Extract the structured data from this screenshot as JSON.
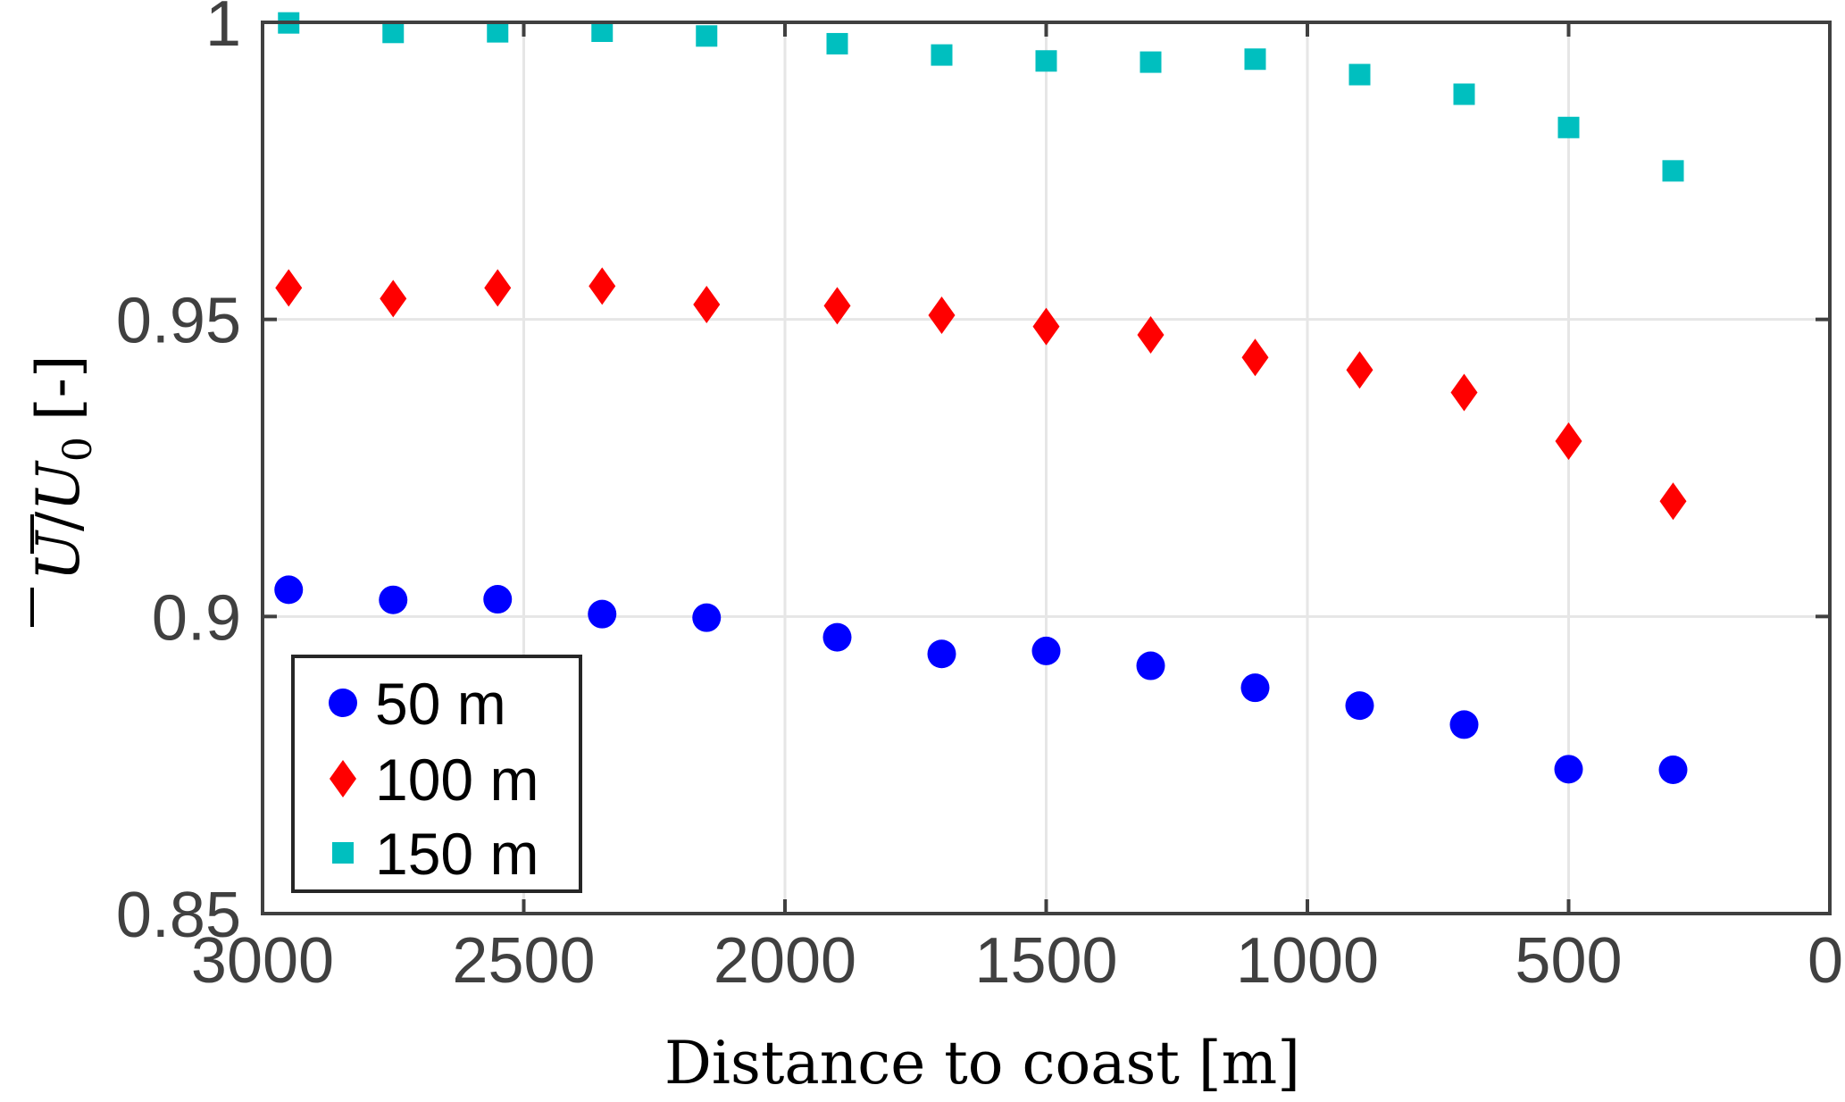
{
  "chart_data": {
    "type": "scatter",
    "title": "",
    "xlabel": "Distance to coast [m]",
    "ylabel": "[-]",
    "ylabel_math": {
      "numerator": "U",
      "slash": "/",
      "denominator": "U",
      "subscript": "0"
    },
    "xlim": [
      3000,
      0
    ],
    "ylim": [
      0.85,
      1.0
    ],
    "x_reversed": true,
    "grid": true,
    "legend_position": "bottom-left",
    "x_ticks": [
      {
        "value": 3000,
        "label": "3000"
      },
      {
        "value": 2500,
        "label": "2500"
      },
      {
        "value": 2000,
        "label": "2000"
      },
      {
        "value": 1500,
        "label": "1500"
      },
      {
        "value": 1000,
        "label": "1000"
      },
      {
        "value": 500,
        "label": "500"
      },
      {
        "value": 0,
        "label": "0"
      }
    ],
    "y_ticks": [
      {
        "value": 0.85,
        "label": "0.85"
      },
      {
        "value": 0.9,
        "label": "0.9"
      },
      {
        "value": 0.95,
        "label": "0.95"
      },
      {
        "value": 1.0,
        "label": "1"
      }
    ],
    "x": [
      2950,
      2750,
      2550,
      2350,
      2150,
      1900,
      1700,
      1500,
      1300,
      1100,
      900,
      700,
      500,
      300
    ],
    "series": [
      {
        "name": "50 m",
        "marker": "circle",
        "color": "#0000ff",
        "values": [
          0.9045,
          0.9028,
          0.9029,
          0.9004,
          0.8998,
          0.8965,
          0.8937,
          0.8942,
          0.8917,
          0.888,
          0.885,
          0.8818,
          0.8743,
          0.8742
        ]
      },
      {
        "name": "100 m",
        "marker": "diamond",
        "color": "#ff0000",
        "values": [
          0.9553,
          0.9535,
          0.9553,
          0.9556,
          0.9525,
          0.9523,
          0.9507,
          0.9488,
          0.9474,
          0.9436,
          0.9415,
          0.9377,
          0.9295,
          0.9194
        ]
      },
      {
        "name": "150 m",
        "marker": "square",
        "color": "#00bfbf",
        "values": [
          0.9999,
          0.9983,
          0.9984,
          0.9985,
          0.9977,
          0.9964,
          0.9945,
          0.9935,
          0.9933,
          0.9938,
          0.9912,
          0.9879,
          0.9823,
          0.975
        ]
      }
    ]
  }
}
